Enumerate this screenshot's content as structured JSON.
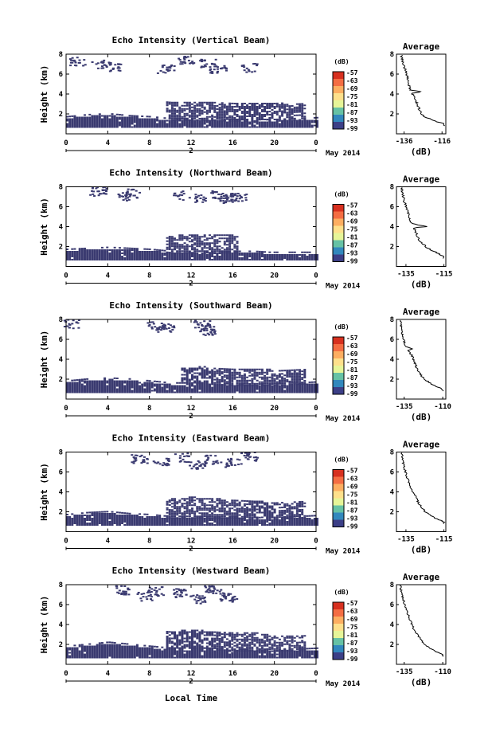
{
  "figure": {
    "xlabel": "Local Time",
    "date_label": "May 2014",
    "x_ticks": [
      "0",
      "4",
      "8",
      "12",
      "16",
      "20",
      "0"
    ],
    "x_day_tick": "2",
    "y_ticks": [
      "2",
      "4",
      "6",
      "8"
    ],
    "ylabel": "Height (km)",
    "colorbar_unit": "(dB)",
    "colorbar_ticks": [
      "-57",
      "-63",
      "-69",
      "-75",
      "-81",
      "-87",
      "-93",
      "-99"
    ],
    "colorbar_colors": [
      "#d7301f",
      "#f46d43",
      "#fdae61",
      "#fee08b",
      "#e6f598",
      "#66c2a5",
      "#3288bd",
      "#3c3f87"
    ],
    "echo_color": "#3a3a70",
    "avg_title": "Average",
    "avg_xlabel": "(dB)"
  },
  "chart_data": [
    {
      "type": "heatmap",
      "title": "Echo Intensity (Vertical Beam)",
      "xlabel": "Local Time",
      "ylabel": "Height (km)",
      "xlim": [
        0,
        24
      ],
      "ylim": [
        0,
        8
      ],
      "low_layer": [
        [
          0,
          1.5
        ],
        [
          2,
          1.7
        ],
        [
          4,
          1.8
        ],
        [
          6,
          1.6
        ],
        [
          8,
          1.5
        ],
        [
          10,
          1.3
        ],
        [
          12,
          1.3
        ],
        [
          14,
          1.3
        ],
        [
          16,
          1.2
        ],
        [
          18,
          1.2
        ],
        [
          20,
          1.2
        ],
        [
          22,
          1.3
        ],
        [
          24,
          1.4
        ]
      ],
      "high_layer": [
        [
          9.5,
          3.1
        ],
        [
          12,
          3.2
        ],
        [
          16,
          3.1
        ],
        [
          19,
          3.0
        ],
        [
          23,
          3.0
        ]
      ],
      "upper_echoes": [
        [
          1,
          7.3
        ],
        [
          3,
          7.1
        ],
        [
          4.5,
          6.8
        ],
        [
          9.5,
          6.6
        ],
        [
          11.5,
          7.4
        ],
        [
          13.5,
          7.2
        ],
        [
          14.5,
          6.5
        ],
        [
          17.5,
          6.7
        ]
      ],
      "average": {
        "title": "Average",
        "xlabel": "(dB)",
        "x_ticks": [
          "-136",
          "-116"
        ],
        "xlim": [
          -140,
          -114
        ],
        "ylim": [
          0,
          8
        ],
        "profile": [
          [
            -115,
            1
          ],
          [
            -120,
            1.3
          ],
          [
            -126,
            1.8
          ],
          [
            -128,
            2.5
          ],
          [
            -130,
            3.5
          ],
          [
            -132,
            4.1
          ],
          [
            -126,
            4.2
          ],
          [
            -133,
            4.4
          ],
          [
            -134,
            5.5
          ],
          [
            -135.5,
            6.5
          ],
          [
            -137,
            7.5
          ],
          [
            -137.5,
            8
          ]
        ]
      }
    },
    {
      "type": "heatmap",
      "title": "Echo Intensity (Northward Beam)",
      "xlabel": "Local Time",
      "ylabel": "Height (km)",
      "xlim": [
        0,
        24
      ],
      "ylim": [
        0,
        8
      ],
      "low_layer": [
        [
          0,
          1.5
        ],
        [
          2,
          1.6
        ],
        [
          4,
          1.7
        ],
        [
          6,
          1.6
        ],
        [
          8,
          1.5
        ],
        [
          10,
          1.3
        ],
        [
          12,
          1.3
        ],
        [
          14,
          1.3
        ],
        [
          16,
          1.3
        ],
        [
          18,
          1.3
        ],
        [
          19.5,
          1.2
        ]
      ],
      "high_layer": [
        [
          9.5,
          3.1
        ],
        [
          12,
          3.2
        ],
        [
          16,
          3.1
        ],
        [
          16.5,
          2.8
        ]
      ],
      "upper_echoes": [
        [
          3,
          7.6
        ],
        [
          5.5,
          7.1
        ],
        [
          6.5,
          7.4
        ],
        [
          11,
          7.2
        ],
        [
          12.5,
          6.9
        ],
        [
          14.5,
          7.3
        ],
        [
          15.5,
          6.7
        ],
        [
          16.5,
          7.0
        ]
      ],
      "average": {
        "title": "Average",
        "xlabel": "(dB)",
        "x_ticks": [
          "-135",
          "-115"
        ],
        "xlim": [
          -140,
          -114
        ],
        "ylim": [
          0,
          8
        ],
        "profile": [
          [
            -115,
            1
          ],
          [
            -119,
            1.4
          ],
          [
            -124,
            1.9
          ],
          [
            -128,
            2.6
          ],
          [
            -130,
            3.5
          ],
          [
            -131,
            3.9
          ],
          [
            -124,
            4.0
          ],
          [
            -132,
            4.3
          ],
          [
            -134,
            5.4
          ],
          [
            -136,
            6.6
          ],
          [
            -137,
            7.5
          ],
          [
            -137.5,
            8
          ]
        ]
      }
    },
    {
      "type": "heatmap",
      "title": "Echo Intensity (Southward Beam)",
      "xlabel": "Local Time",
      "ylabel": "Height (km)",
      "xlim": [
        0,
        24
      ],
      "ylim": [
        0,
        8
      ],
      "low_layer": [
        [
          0,
          1.6
        ],
        [
          2,
          1.8
        ],
        [
          4,
          1.9
        ],
        [
          6,
          1.8
        ],
        [
          8,
          1.6
        ],
        [
          10,
          1.4
        ],
        [
          12,
          1.4
        ],
        [
          14,
          1.4
        ],
        [
          16,
          1.3
        ],
        [
          18,
          1.3
        ],
        [
          20,
          1.3
        ],
        [
          22,
          1.4
        ],
        [
          24,
          1.5
        ]
      ],
      "high_layer": [
        [
          11,
          3.0
        ],
        [
          13,
          3.2
        ],
        [
          15,
          3.0
        ],
        [
          20,
          2.9
        ],
        [
          23,
          3.0
        ]
      ],
      "upper_echoes": [
        [
          0.5,
          7.6
        ],
        [
          8.5,
          7.4
        ],
        [
          9.5,
          7.2
        ],
        [
          13,
          7.5
        ],
        [
          13.5,
          6.9
        ]
      ],
      "average": {
        "title": "Average",
        "xlabel": "(dB)",
        "x_ticks": [
          "-135",
          "-110"
        ],
        "xlim": [
          -140,
          -108
        ],
        "ylim": [
          0,
          8
        ],
        "profile": [
          [
            -110,
            1
          ],
          [
            -116,
            1.4
          ],
          [
            -122,
            2.0
          ],
          [
            -126,
            2.8
          ],
          [
            -128,
            3.6
          ],
          [
            -130,
            4.4
          ],
          [
            -133,
            4.9
          ],
          [
            -129,
            5.0
          ],
          [
            -134,
            5.3
          ],
          [
            -136,
            6.3
          ],
          [
            -137,
            7.4
          ],
          [
            -137.5,
            8
          ]
        ]
      }
    },
    {
      "type": "heatmap",
      "title": "Echo Intensity (Eastward Beam)",
      "xlabel": "Local Time",
      "ylabel": "Height (km)",
      "xlim": [
        0,
        24
      ],
      "ylim": [
        0,
        8
      ],
      "low_layer": [
        [
          0,
          1.5
        ],
        [
          2,
          1.7
        ],
        [
          4,
          1.8
        ],
        [
          6,
          1.6
        ],
        [
          8,
          1.5
        ],
        [
          10,
          1.3
        ],
        [
          12,
          1.3
        ],
        [
          14,
          1.3
        ],
        [
          16,
          1.3
        ],
        [
          18,
          1.2
        ],
        [
          20,
          1.2
        ],
        [
          22,
          1.3
        ],
        [
          24,
          1.4
        ]
      ],
      "high_layer": [
        [
          9.5,
          3.3
        ],
        [
          12,
          3.4
        ],
        [
          15,
          3.2
        ],
        [
          20,
          2.9
        ],
        [
          23,
          3.0
        ]
      ],
      "upper_echoes": [
        [
          7,
          7.4
        ],
        [
          9,
          7.1
        ],
        [
          11,
          7.5
        ],
        [
          12.5,
          6.8
        ],
        [
          14,
          7.3
        ],
        [
          16,
          7.0
        ],
        [
          17.5,
          7.6
        ]
      ],
      "average": {
        "title": "Average",
        "xlabel": "(dB)",
        "x_ticks": [
          "-135",
          "-115"
        ],
        "xlim": [
          -140,
          -114
        ],
        "ylim": [
          0,
          8
        ],
        "profile": [
          [
            -115,
            1
          ],
          [
            -120,
            1.4
          ],
          [
            -125,
            2.0
          ],
          [
            -128,
            2.8
          ],
          [
            -130,
            3.5
          ],
          [
            -132,
            4.2
          ],
          [
            -134,
            5.2
          ],
          [
            -136,
            6.5
          ],
          [
            -137,
            7.5
          ],
          [
            -137.5,
            8
          ]
        ]
      }
    },
    {
      "type": "heatmap",
      "title": "Echo Intensity (Westward Beam)",
      "xlabel": "Local Time",
      "ylabel": "Height (km)",
      "xlim": [
        0,
        24
      ],
      "ylim": [
        0,
        8
      ],
      "low_layer": [
        [
          0,
          1.6
        ],
        [
          2,
          1.8
        ],
        [
          4,
          2.0
        ],
        [
          6,
          1.8
        ],
        [
          8,
          1.6
        ],
        [
          10,
          1.4
        ],
        [
          12,
          1.4
        ],
        [
          14,
          1.4
        ],
        [
          16,
          1.3
        ],
        [
          18,
          1.3
        ],
        [
          20,
          1.3
        ],
        [
          22,
          1.3
        ],
        [
          24,
          1.4
        ]
      ],
      "high_layer": [
        [
          9.5,
          3.2
        ],
        [
          12,
          3.4
        ],
        [
          15,
          3.2
        ],
        [
          18,
          3.1
        ],
        [
          20,
          2.8
        ],
        [
          23,
          2.8
        ]
      ],
      "upper_echoes": [
        [
          5.5,
          7.5
        ],
        [
          7.5,
          6.9
        ],
        [
          8.5,
          7.4
        ],
        [
          11,
          7.2
        ],
        [
          12.5,
          6.6
        ],
        [
          14,
          7.5
        ],
        [
          15.5,
          6.8
        ]
      ],
      "average": {
        "title": "Average",
        "xlabel": "(dB)",
        "x_ticks": [
          "-135",
          "-110"
        ],
        "xlim": [
          -140,
          -108
        ],
        "ylim": [
          0,
          8
        ],
        "profile": [
          [
            -110,
            1
          ],
          [
            -116,
            1.4
          ],
          [
            -122,
            2.0
          ],
          [
            -126,
            2.9
          ],
          [
            -129,
            3.6
          ],
          [
            -131,
            4.4
          ],
          [
            -133,
            5.2
          ],
          [
            -135,
            6.2
          ],
          [
            -137,
            7.4
          ],
          [
            -137.5,
            8
          ]
        ]
      }
    }
  ]
}
